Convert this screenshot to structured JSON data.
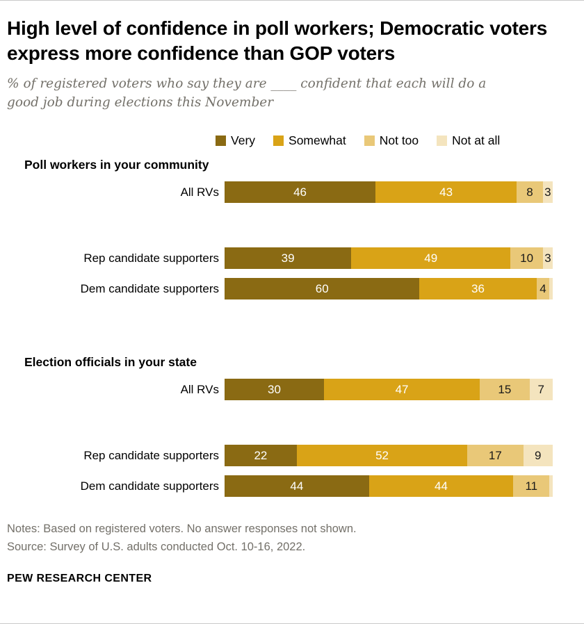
{
  "header": {
    "title": "High level of confidence in poll workers; Democratic voters express more confidence than GOP voters",
    "subtitle": "% of registered voters who say they are ____ confident that each will do a good job during elections this November"
  },
  "chart_data": {
    "type": "bar",
    "stacked": true,
    "orientation": "horizontal",
    "xlim": [
      0,
      100
    ],
    "legend": [
      "Very",
      "Somewhat",
      "Not too",
      "Not at all"
    ],
    "colors": [
      "#8A6A13",
      "#D9A317",
      "#E9C878",
      "#F4E4BE"
    ],
    "value_label_colors": [
      "#FFFFFF",
      "#FFFFFF",
      "#1A1A1A",
      "#1A1A1A"
    ],
    "groups": [
      {
        "title": "Poll workers in your community",
        "rows": [
          {
            "label": "All RVs",
            "segments": [
              {
                "value": 46,
                "text": "46"
              },
              {
                "value": 43,
                "text": "43"
              },
              {
                "value": 8,
                "text": "8"
              },
              {
                "value": 3,
                "text": "3"
              }
            ]
          },
          {
            "label": "Rep candidate supporters",
            "segments": [
              {
                "value": 39,
                "text": "39"
              },
              {
                "value": 49,
                "text": "49"
              },
              {
                "value": 10,
                "text": "10"
              },
              {
                "value": 3,
                "text": "3"
              }
            ]
          },
          {
            "label": "Dem candidate supporters",
            "segments": [
              {
                "value": 60,
                "text": "60"
              },
              {
                "value": 36,
                "text": "36"
              },
              {
                "value": 4,
                "text": "4"
              },
              {
                "value": 1,
                "text": ""
              }
            ]
          }
        ]
      },
      {
        "title": "Election officials in your state",
        "rows": [
          {
            "label": "All RVs",
            "segments": [
              {
                "value": 30,
                "text": "30"
              },
              {
                "value": 47,
                "text": "47"
              },
              {
                "value": 15,
                "text": "15"
              },
              {
                "value": 7,
                "text": "7"
              }
            ]
          },
          {
            "label": "Rep candidate supporters",
            "segments": [
              {
                "value": 22,
                "text": "22"
              },
              {
                "value": 52,
                "text": "52"
              },
              {
                "value": 17,
                "text": "17"
              },
              {
                "value": 9,
                "text": "9"
              }
            ]
          },
          {
            "label": "Dem candidate supporters",
            "segments": [
              {
                "value": 44,
                "text": "44"
              },
              {
                "value": 44,
                "text": "44"
              },
              {
                "value": 11,
                "text": "11"
              },
              {
                "value": 1,
                "text": ""
              }
            ]
          }
        ]
      }
    ]
  },
  "footer": {
    "notes": "Notes: Based on registered voters. No answer responses not shown.",
    "source": "Source: Survey of U.S. adults conducted Oct. 10-16, 2022.",
    "brand": "PEW RESEARCH CENTER"
  }
}
